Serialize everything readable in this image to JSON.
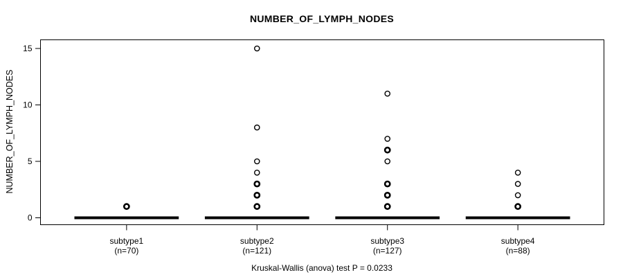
{
  "chart_data": {
    "type": "boxplot",
    "title": "NUMBER_OF_LYMPH_NODES",
    "ylabel": "NUMBER_OF_LYMPH_NODES",
    "caption": "Kruskal-Wallis (anova) test P = 0.0233",
    "yticks": [
      0,
      5,
      10,
      15
    ],
    "ylim": [
      -0.6,
      15.6
    ],
    "grid": false,
    "legend": "none",
    "colors": {
      "foreground": "#000000",
      "background": "#ffffff"
    },
    "groups": [
      {
        "label": "subtype1",
        "count_label": "(n=70)",
        "n": 70,
        "box": {
          "median": 0,
          "q1": 0,
          "q3": 0,
          "whisker_low": 0,
          "whisker_high": 0
        },
        "outliers": [
          {
            "value": 1,
            "weight": "bold"
          }
        ]
      },
      {
        "label": "subtype2",
        "count_label": "(n=121)",
        "n": 121,
        "box": {
          "median": 0,
          "q1": 0,
          "q3": 0,
          "whisker_low": 0,
          "whisker_high": 0
        },
        "outliers": [
          {
            "value": 15,
            "weight": "normal"
          },
          {
            "value": 8,
            "weight": "normal"
          },
          {
            "value": 5,
            "weight": "normal"
          },
          {
            "value": 4,
            "weight": "normal"
          },
          {
            "value": 3,
            "weight": "bold"
          },
          {
            "value": 2,
            "weight": "bold"
          },
          {
            "value": 1,
            "weight": "bold"
          }
        ]
      },
      {
        "label": "subtype3",
        "count_label": "(n=127)",
        "n": 127,
        "box": {
          "median": 0,
          "q1": 0,
          "q3": 0,
          "whisker_low": 0,
          "whisker_high": 0
        },
        "outliers": [
          {
            "value": 11,
            "weight": "normal"
          },
          {
            "value": 7,
            "weight": "normal"
          },
          {
            "value": 6,
            "weight": "bold"
          },
          {
            "value": 5,
            "weight": "normal"
          },
          {
            "value": 3,
            "weight": "bold"
          },
          {
            "value": 2,
            "weight": "bold"
          },
          {
            "value": 1,
            "weight": "bold"
          }
        ]
      },
      {
        "label": "subtype4",
        "count_label": "(n=88)",
        "n": 88,
        "box": {
          "median": 0,
          "q1": 0,
          "q3": 0,
          "whisker_low": 0,
          "whisker_high": 0
        },
        "outliers": [
          {
            "value": 4,
            "weight": "normal"
          },
          {
            "value": 3,
            "weight": "normal"
          },
          {
            "value": 2,
            "weight": "normal"
          },
          {
            "value": 1,
            "weight": "bold"
          }
        ]
      }
    ]
  }
}
